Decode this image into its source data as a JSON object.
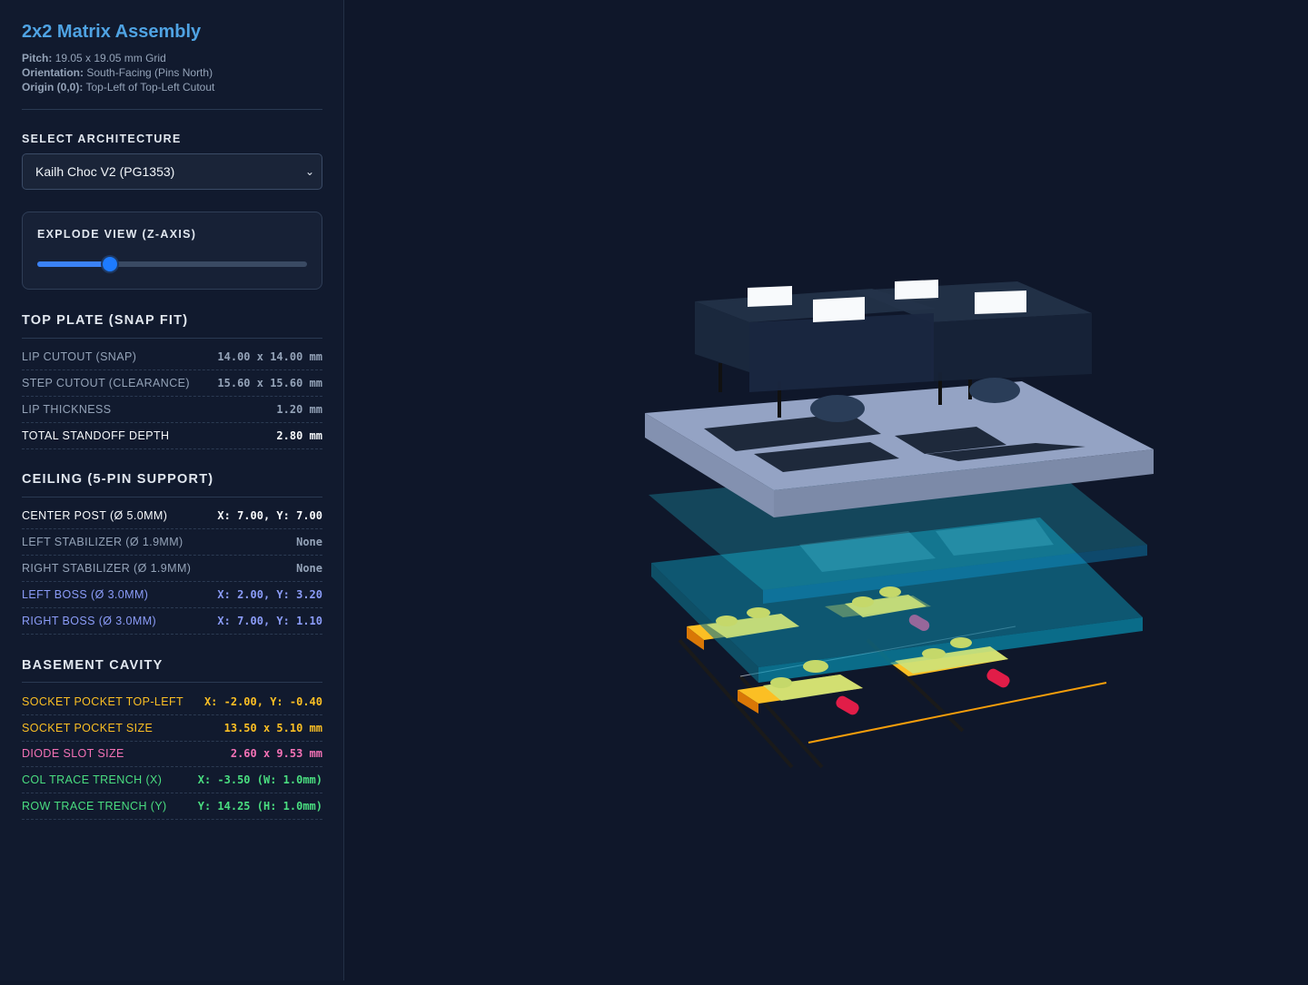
{
  "header": {
    "title": "2x2 Matrix Assembly",
    "pitch_label": "Pitch:",
    "pitch_value": "19.05 x 19.05 mm Grid",
    "orientation_label": "Orientation:",
    "orientation_value": "South-Facing (Pins North)",
    "origin_label": "Origin (0,0):",
    "origin_value": "Top-Left of Top-Left Cutout"
  },
  "architecture": {
    "label": "SELECT ARCHITECTURE",
    "selected": "Kailh Choc V2 (PG1353)"
  },
  "explode": {
    "label": "EXPLODE VIEW (Z-AXIS)",
    "level": 0.27
  },
  "top_plate": {
    "title": "TOP PLATE (SNAP FIT)",
    "rows": [
      {
        "k": "LIP CUTOUT (SNAP)",
        "v": "14.00 x 14.00 mm"
      },
      {
        "k": "STEP CUTOUT (CLEARANCE)",
        "v": "15.60 x 15.60 mm"
      },
      {
        "k": "LIP THICKNESS",
        "v": "1.20 mm"
      },
      {
        "k": "TOTAL STANDOFF DEPTH",
        "v": "2.80 mm"
      }
    ]
  },
  "ceiling": {
    "title": "CEILING (5-PIN SUPPORT)",
    "rows": [
      {
        "k": "CENTER POST (Ø 5.0MM)",
        "v": "X: 7.00, Y: 7.00"
      },
      {
        "k": "LEFT STABILIZER (Ø 1.9MM)",
        "v": "None"
      },
      {
        "k": "RIGHT STABILIZER (Ø 1.9MM)",
        "v": "None"
      },
      {
        "k": "LEFT BOSS (Ø 3.0MM)",
        "v": "X: 2.00, Y: 3.20"
      },
      {
        "k": "RIGHT BOSS (Ø 3.0MM)",
        "v": "X: 7.00, Y: 1.10"
      }
    ]
  },
  "basement": {
    "title": "BASEMENT CAVITY",
    "rows": [
      {
        "k": "SOCKET POCKET TOP-LEFT",
        "v": "X: -2.00, Y: -0.40"
      },
      {
        "k": "SOCKET POCKET SIZE",
        "v": "13.50 x 5.10 mm"
      },
      {
        "k": "DIODE SLOT SIZE",
        "v": "2.60 x 9.53 mm"
      },
      {
        "k": "COL TRACE TRENCH (X)",
        "v": "X: -3.50 (W: 1.0mm)"
      },
      {
        "k": "ROW TRACE TRENCH (Y)",
        "v": "Y: 14.25 (H: 1.0mm)"
      }
    ]
  },
  "colors": {
    "title": "#4fa3e3",
    "accent": "#3b82f6",
    "boss": "#8b9cf8",
    "socket": "#fbbf24",
    "diode": "#f472b6",
    "trace": "#4ade80"
  }
}
